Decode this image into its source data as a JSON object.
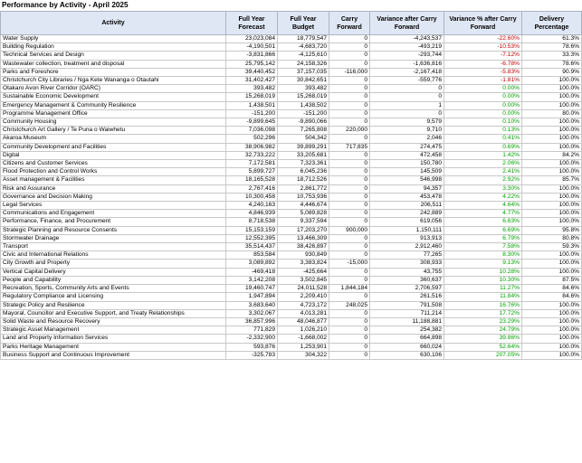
{
  "title": "Performance by Activity - April 2025",
  "headers": [
    "Activity",
    "Full Year Forecast",
    "Full Year Budget",
    "Carry Forward",
    "Variance after Carry Forward",
    "Variance % after Carry Forward",
    "Delivery Percentage"
  ],
  "rows": [
    [
      "Water Supply",
      "23,023,084",
      "18,779,547",
      "0",
      "-4,243,537",
      "-22.60%",
      "61.3%"
    ],
    [
      "Building Regulation",
      "-4,190,501",
      "-4,683,720",
      "0",
      "-493,219",
      "-10.53%",
      "78.6%"
    ],
    [
      "Technical Services and Design",
      "-3,831,866",
      "-4,125,610",
      "0",
      "-293,744",
      "-7.12%",
      "33.3%"
    ],
    [
      "Wastewater collection, treatment and disposal",
      "25,795,142",
      "24,158,326",
      "0",
      "-1,636,816",
      "-6.78%",
      "78.6%"
    ],
    [
      "Parks and Foreshore",
      "39,440,452",
      "37,157,035",
      "-116,000",
      "-2,167,418",
      "-5.83%",
      "90.9%"
    ],
    [
      "Christchurch City Libraries / Nga Kete Wananga o Otautahi",
      "31,402,427",
      "30,842,651",
      "0",
      "-559,776",
      "-1.81%",
      "100.0%"
    ],
    [
      "Otakaro Avon River Corridor (OARC)",
      "393,482",
      "393,482",
      "0",
      "0",
      "0.00%",
      "100.0%"
    ],
    [
      "Sustainable Economic Development",
      "15,268,019",
      "15,268,019",
      "0",
      "0",
      "0.00%",
      "100.0%"
    ],
    [
      "Emergency Management & Community Resilience",
      "1,438,501",
      "1,438,502",
      "0",
      "1",
      "0.00%",
      "100.0%"
    ],
    [
      "Programme Management Office",
      "-151,200",
      "-151,200",
      "0",
      "0",
      "0.00%",
      "80.0%"
    ],
    [
      "Community Housing",
      "-9,899,645",
      "-9,890,066",
      "0",
      "9,579",
      "0.10%",
      "100.0%"
    ],
    [
      "Christchurch Art Gallery / Te Puna o Waiwhetu",
      "7,036,098",
      "7,265,808",
      "220,000",
      "9,710",
      "0.13%",
      "100.0%"
    ],
    [
      "Akaroa Museum",
      "502,296",
      "504,342",
      "0",
      "2,046",
      "0.41%",
      "100.0%"
    ],
    [
      "Community Development and Facilities",
      "38,906,982",
      "39,899,291",
      "717,835",
      "274,475",
      "0.69%",
      "100.0%"
    ],
    [
      "Digital",
      "32,733,222",
      "33,205,681",
      "0",
      "472,458",
      "1.42%",
      "84.2%"
    ],
    [
      "Citizens and Customer Services",
      "7,172,581",
      "7,323,361",
      "0",
      "150,780",
      "2.06%",
      "100.0%"
    ],
    [
      "Flood Protection and Control Works",
      "5,899,727",
      "6,045,236",
      "0",
      "145,509",
      "2.41%",
      "100.0%"
    ],
    [
      "Asset management & Facilities",
      "18,165,528",
      "18,712,526",
      "0",
      "546,998",
      "2.92%",
      "85.7%"
    ],
    [
      "Risk and Assurance",
      "2,767,416",
      "2,861,772",
      "0",
      "94,357",
      "3.30%",
      "100.0%"
    ],
    [
      "Governance and Decision Making",
      "10,300,458",
      "10,753,936",
      "0",
      "453,478",
      "4.22%",
      "100.0%"
    ],
    [
      "Legal Services",
      "4,240,163",
      "4,446,674",
      "0",
      "206,511",
      "4.64%",
      "100.0%"
    ],
    [
      "Communications and Engagement",
      "4,846,939",
      "5,089,828",
      "0",
      "242,889",
      "4.77%",
      "100.0%"
    ],
    [
      "Performance, Finance, and Procurement",
      "8,718,538",
      "9,337,594",
      "0",
      "619,056",
      "6.63%",
      "100.0%"
    ],
    [
      "Strategic Planning and Resource Consents",
      "15,153,159",
      "17,203,270",
      "900,000",
      "1,150,111",
      "6.69%",
      "95.8%"
    ],
    [
      "Stormwater Drainage",
      "12,552,395",
      "13,466,309",
      "0",
      "913,913",
      "6.79%",
      "80.8%"
    ],
    [
      "Transport",
      "35,514,437",
      "38,426,897",
      "0",
      "2,912,460",
      "7.58%",
      "59.3%"
    ],
    [
      "Civic and International Relations",
      "853,584",
      "930,849",
      "0",
      "77,265",
      "8.30%",
      "100.0%"
    ],
    [
      "City Growth and Property",
      "3,089,892",
      "3,383,824",
      "-15,000",
      "308,933",
      "9.13%",
      "100.0%"
    ],
    [
      "Vertical Capital Delivery",
      "-469,418",
      "-425,664",
      "0",
      "43,755",
      "10.28%",
      "100.0%"
    ],
    [
      "People and Capability",
      "3,142,208",
      "3,502,845",
      "0",
      "360,637",
      "10.30%",
      "87.5%"
    ],
    [
      "Recreation, Sports, Community Arts and Events",
      "19,460,747",
      "24,011,528",
      "1,844,184",
      "2,706,597",
      "11.27%",
      "84.6%"
    ],
    [
      "Regulatory Compliance and Licensing",
      "1,947,894",
      "2,209,410",
      "0",
      "261,516",
      "11.84%",
      "84.6%"
    ],
    [
      "Strategic Policy and Resilience",
      "3,683,640",
      "4,723,172",
      "248,025",
      "791,508",
      "16.76%",
      "100.0%"
    ],
    [
      "Mayoral, Councillor and Executive Support, and Treaty Relationships",
      "3,302,067",
      "4,013,281",
      "0",
      "711,214",
      "17.72%",
      "100.0%"
    ],
    [
      "Solid Waste and Resource Recovery",
      "36,857,996",
      "48,046,877",
      "0",
      "11,188,881",
      "23.29%",
      "100.0%"
    ],
    [
      "Strategic Asset Management",
      "771,829",
      "1,026,210",
      "0",
      "254,382",
      "24.79%",
      "100.0%"
    ],
    [
      "Land and Property Information Services",
      "-2,332,900",
      "-1,668,002",
      "0",
      "664,898",
      "39.86%",
      "100.0%"
    ],
    [
      "Parks Heritage Management",
      "593,876",
      "1,253,901",
      "0",
      "660,024",
      "52.64%",
      "100.0%"
    ],
    [
      "Business Support and Continuous Improvement",
      "-325,783",
      "304,322",
      "0",
      "630,106",
      "207.05%",
      "100.0%"
    ]
  ]
}
